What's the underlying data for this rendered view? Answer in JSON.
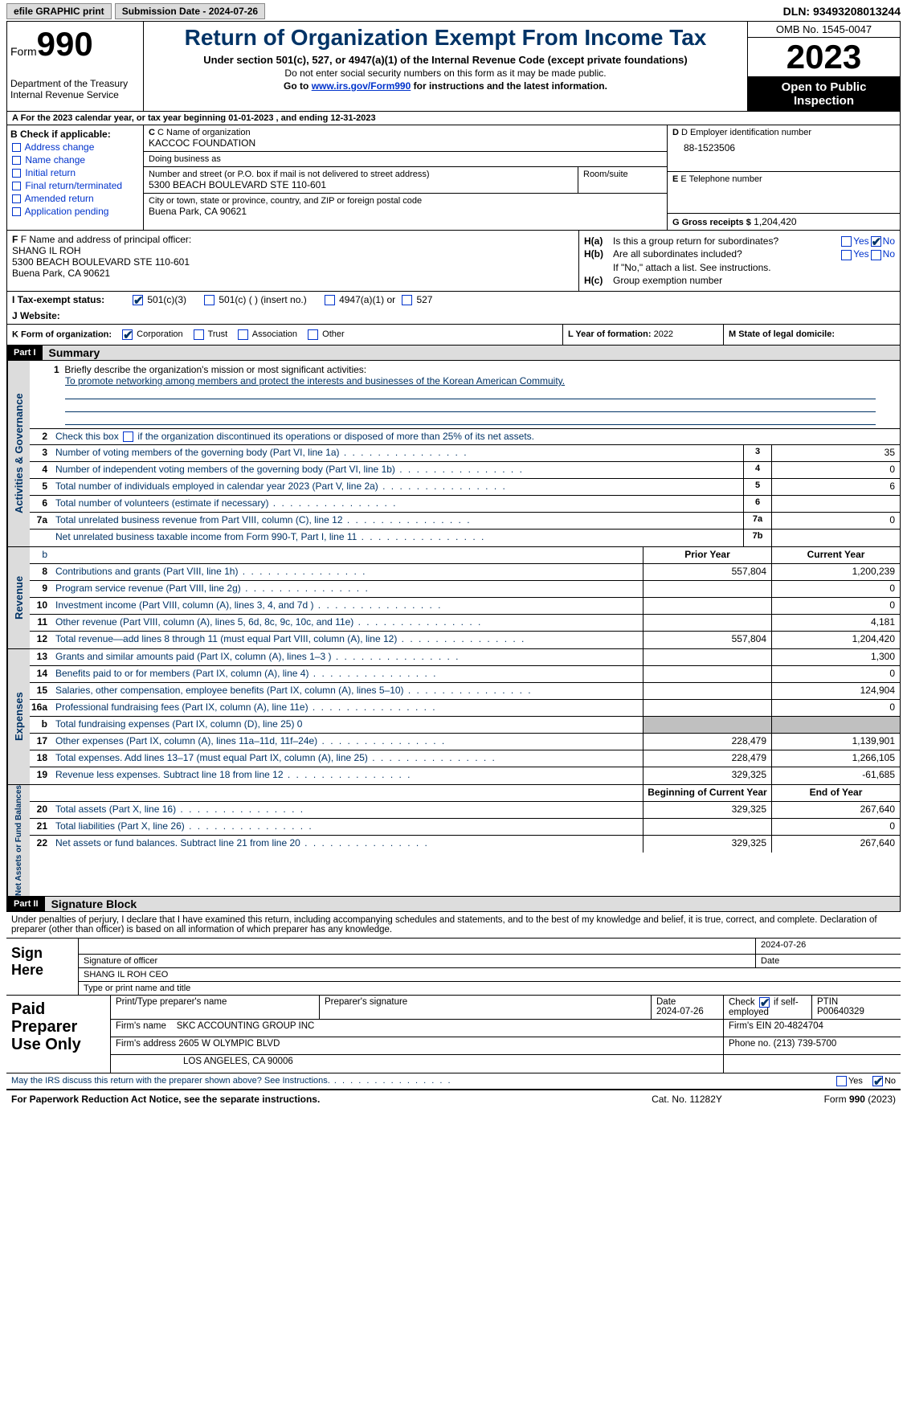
{
  "topbar": {
    "btn1": "efile GRAPHIC print",
    "btn2": "Submission Date - 2024-07-26",
    "dln": "DLN: 93493208013244"
  },
  "header": {
    "form_label": "Form",
    "form_no": "990",
    "title": "Return of Organization Exempt From Income Tax",
    "sub": "Under section 501(c), 527, or 4947(a)(1) of the Internal Revenue Code (except private foundations)",
    "note1": "Do not enter social security numbers on this form as it may be made public.",
    "note2": "Go to ",
    "link": "www.irs.gov/Form990",
    "note3": " for instructions and the latest information.",
    "dept": "Department of the Treasury\nInternal Revenue Service",
    "omb": "OMB No. 1545-0047",
    "year": "2023",
    "inspect": "Open to Public Inspection"
  },
  "rowA": {
    "text": "A For the 2023 calendar year, or tax year beginning 01-01-2023    , and ending 12-31-2023"
  },
  "b": {
    "lbl": "B Check if applicable:",
    "opts": [
      "Address change",
      "Name change",
      "Initial return",
      "Final return/terminated",
      "Amended return",
      "Application pending"
    ]
  },
  "c": {
    "name_lbl": "C Name of organization",
    "name": "KACCOC FOUNDATION",
    "dba_lbl": "Doing business as",
    "dba": "",
    "addr_lbl": "Number and street (or P.O. box if mail is not delivered to street address)",
    "addr": "5300 BEACH BOULEVARD STE 110-601",
    "room_lbl": "Room/suite",
    "room": "",
    "city_lbl": "City or town, state or province, country, and ZIP or foreign postal code",
    "city": "Buena Park, CA  90621"
  },
  "d": {
    "lbl": "D Employer identification number",
    "val": "88-1523506"
  },
  "e": {
    "lbl": "E Telephone number",
    "val": ""
  },
  "g": {
    "lbl": "G Gross receipts $",
    "val": "1,204,420"
  },
  "f": {
    "lbl": "F  Name and address of principal officer:",
    "val": "SHANG IL ROH\n5300 BEACH BOULEVARD STE 110-601\nBuena Park, CA  90621"
  },
  "h": {
    "a_lbl": "H(a)",
    "a_txt": "Is this a group return for subordinates?",
    "a_yes": "Yes",
    "a_no": "No",
    "b_lbl": "H(b)",
    "b_txt": "Are all subordinates included?",
    "b_yes": "Yes",
    "b_no": "No",
    "b_note": "If \"No,\" attach a list. See instructions.",
    "c_lbl": "H(c)",
    "c_txt": "Group exemption number"
  },
  "i": {
    "lbl": "I Tax-exempt status:",
    "o1": "501(c)(3)",
    "o2": "501(c) (  ) (insert no.)",
    "o3": "4947(a)(1) or",
    "o4": "527"
  },
  "j": {
    "lbl": "J Website:",
    "val": ""
  },
  "k": {
    "lbl": "K Form of organization:",
    "o1": "Corporation",
    "o2": "Trust",
    "o3": "Association",
    "o4": "Other"
  },
  "l": {
    "lbl": "L Year of formation:",
    "val": "2022"
  },
  "m": {
    "lbl": "M State of legal domicile:",
    "val": ""
  },
  "part1": {
    "hdr": "Part I",
    "title": "Summary"
  },
  "summary": {
    "line1_lbl": "Briefly describe the organization's mission or most significant activities:",
    "line1_val": "To promote networking among members and protect the interests and businesses of the Korean American Commuity.",
    "line2": "Check this box       if the organization discontinued its operations or disposed of more than 25% of its net assets.",
    "vlabel_ag": "Activities & Governance",
    "vlabel_rev": "Revenue",
    "vlabel_exp": "Expenses",
    "vlabel_na": "Net Assets or Fund Balances"
  },
  "ag_rows": [
    {
      "n": "3",
      "t": "Number of voting members of the governing body (Part VI, line 1a)",
      "c": "3",
      "v": "35"
    },
    {
      "n": "4",
      "t": "Number of independent voting members of the governing body (Part VI, line 1b)",
      "c": "4",
      "v": "0"
    },
    {
      "n": "5",
      "t": "Total number of individuals employed in calendar year 2023 (Part V, line 2a)",
      "c": "5",
      "v": "6"
    },
    {
      "n": "6",
      "t": "Total number of volunteers (estimate if necessary)",
      "c": "6",
      "v": ""
    },
    {
      "n": "7a",
      "t": "Total unrelated business revenue from Part VIII, column (C), line 12",
      "c": "7a",
      "v": "0"
    },
    {
      "n": "",
      "t": "Net unrelated business taxable income from Form 990-T, Part I, line 11",
      "c": "7b",
      "v": ""
    }
  ],
  "col_hdr": {
    "prior": "Prior Year",
    "cur": "Current Year",
    "beg": "Beginning of Current Year",
    "end": "End of Year"
  },
  "rev_rows": [
    {
      "n": "8",
      "t": "Contributions and grants (Part VIII, line 1h)",
      "p": "557,804",
      "c": "1,200,239"
    },
    {
      "n": "9",
      "t": "Program service revenue (Part VIII, line 2g)",
      "p": "",
      "c": "0"
    },
    {
      "n": "10",
      "t": "Investment income (Part VIII, column (A), lines 3, 4, and 7d )",
      "p": "",
      "c": "0"
    },
    {
      "n": "11",
      "t": "Other revenue (Part VIII, column (A), lines 5, 6d, 8c, 9c, 10c, and 11e)",
      "p": "",
      "c": "4,181"
    },
    {
      "n": "12",
      "t": "Total revenue—add lines 8 through 11 (must equal Part VIII, column (A), line 12)",
      "p": "557,804",
      "c": "1,204,420"
    }
  ],
  "exp_rows": [
    {
      "n": "13",
      "t": "Grants and similar amounts paid (Part IX, column (A), lines 1–3 )",
      "p": "",
      "c": "1,300"
    },
    {
      "n": "14",
      "t": "Benefits paid to or for members (Part IX, column (A), line 4)",
      "p": "",
      "c": "0"
    },
    {
      "n": "15",
      "t": "Salaries, other compensation, employee benefits (Part IX, column (A), lines 5–10)",
      "p": "",
      "c": "124,904"
    },
    {
      "n": "16a",
      "t": "Professional fundraising fees (Part IX, column (A), line 11e)",
      "p": "",
      "c": "0"
    },
    {
      "n": "b",
      "t": "Total fundraising expenses (Part IX, column (D), line 25) 0",
      "p": "shaded",
      "c": "shaded"
    },
    {
      "n": "17",
      "t": "Other expenses (Part IX, column (A), lines 11a–11d, 11f–24e)",
      "p": "228,479",
      "c": "1,139,901"
    },
    {
      "n": "18",
      "t": "Total expenses. Add lines 13–17 (must equal Part IX, column (A), line 25)",
      "p": "228,479",
      "c": "1,266,105"
    },
    {
      "n": "19",
      "t": "Revenue less expenses. Subtract line 18 from line 12",
      "p": "329,325",
      "c": "-61,685"
    }
  ],
  "na_rows": [
    {
      "n": "20",
      "t": "Total assets (Part X, line 16)",
      "p": "329,325",
      "c": "267,640"
    },
    {
      "n": "21",
      "t": "Total liabilities (Part X, line 26)",
      "p": "",
      "c": "0"
    },
    {
      "n": "22",
      "t": "Net assets or fund balances. Subtract line 21 from line 20",
      "p": "329,325",
      "c": "267,640"
    }
  ],
  "part2": {
    "hdr": "Part II",
    "title": "Signature Block"
  },
  "sig": {
    "decl": "Under penalties of perjury, I declare that I have examined this return, including accompanying schedules and statements, and to the best of my knowledge and belief, it is true, correct, and complete. Declaration of preparer (other than officer) is based on all information of which preparer has any knowledge.",
    "sign_here": "Sign Here",
    "sig_of": "Signature of officer",
    "date_lbl": "Date",
    "date": "2024-07-26",
    "name": "SHANG IL ROH  CEO",
    "name_lbl": "Type or print name and title"
  },
  "prep": {
    "hdr": "Paid Preparer Use Only",
    "r1": {
      "c1": "Print/Type preparer's name",
      "c2": "Preparer's signature",
      "c3_lbl": "Date",
      "c3": "2024-07-26",
      "c4_lbl": "Check",
      "c4_txt": "if self-employed",
      "c5_lbl": "PTIN",
      "c5": "P00640329"
    },
    "r2": {
      "lbl": "Firm's name",
      "val": "SKC ACCOUNTING GROUP INC",
      "ein_lbl": "Firm's EIN",
      "ein": "20-4824704"
    },
    "r3": {
      "lbl": "Firm's address",
      "val1": "2605 W OLYMPIC BLVD",
      "val2": "LOS ANGELES, CA  90006",
      "ph_lbl": "Phone no.",
      "ph": "(213) 739-5700"
    }
  },
  "discuss": {
    "txt": "May the IRS discuss this return with the preparer shown above? See Instructions.",
    "yes": "Yes",
    "no": "No"
  },
  "footer": {
    "l": "For Paperwork Reduction Act Notice, see the separate instructions.",
    "m": "Cat. No. 11282Y",
    "r": "Form 990 (2023)"
  },
  "colors": {
    "heading": "#003366",
    "link": "#0033cc",
    "shade": "#c0c0c0",
    "btn_bg": "#dcdcdc"
  }
}
